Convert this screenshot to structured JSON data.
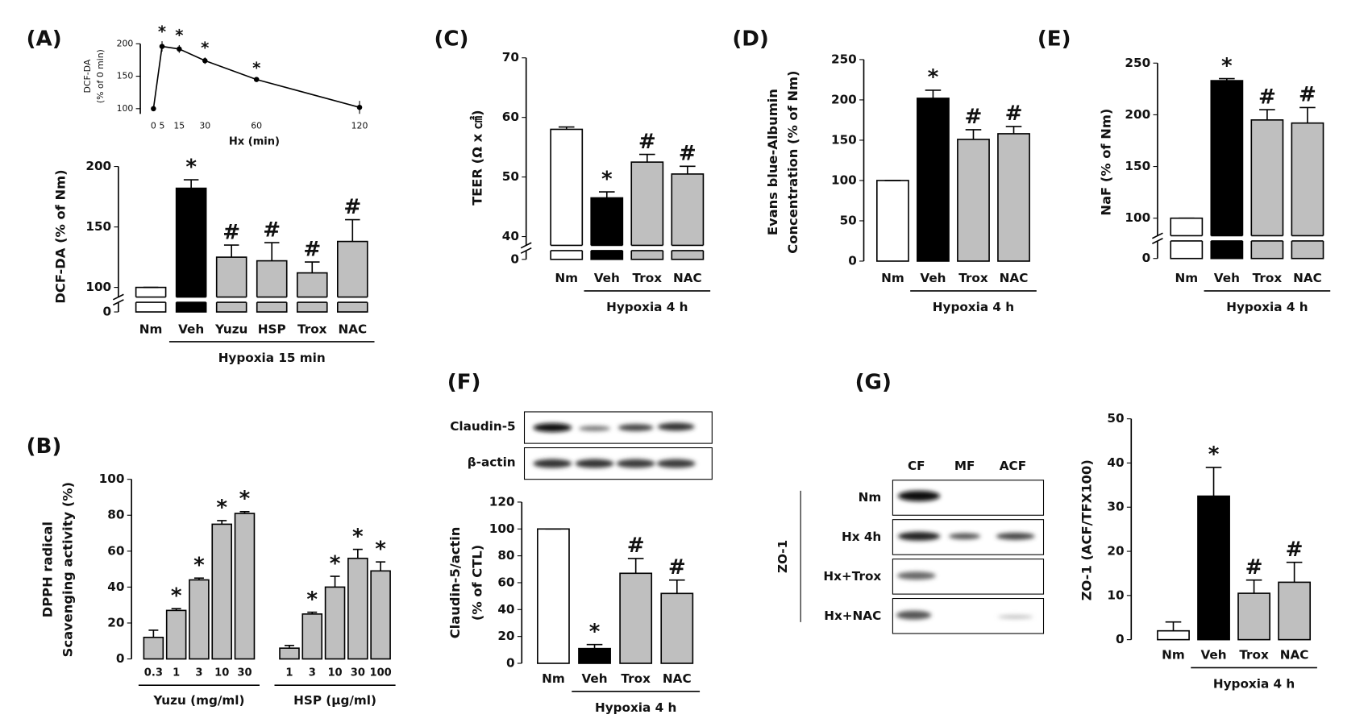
{
  "chart_data": [
    {
      "type": "line",
      "x": [
        0,
        5,
        15,
        30,
        60,
        120
      ],
      "values": [
        100,
        196,
        192,
        174,
        145,
        102
      ],
      "errors": [
        2,
        8,
        6,
        5,
        3,
        10
      ],
      "markers": [
        null,
        "*",
        "*",
        "*",
        "*",
        null
      ],
      "xticks": [
        0,
        5,
        15,
        30,
        60,
        120
      ],
      "xlim": [
        0,
        120
      ],
      "ylim": [
        100,
        200
      ],
      "yticks": [
        100,
        150,
        200
      ],
      "xlabel": "Hx (min)",
      "ylabel": [
        "DCF-DA",
        "(% of 0 min)"
      ],
      "color": "#000000"
    },
    {
      "type": "bar",
      "panel": "(A)",
      "categories": [
        "Nm",
        "Veh",
        "Yuzu",
        "HSP",
        "Trox",
        "NAC"
      ],
      "values": [
        100,
        182,
        125,
        122,
        112,
        138
      ],
      "errors": [
        0,
        7,
        10,
        15,
        9,
        18
      ],
      "colors": [
        "#ffffff",
        "#000000",
        "#bfbfbf",
        "#bfbfbf",
        "#bfbfbf",
        "#bfbfbf"
      ],
      "markers": [
        null,
        "*",
        "#",
        "#",
        "#",
        "#"
      ],
      "ylim": [
        100,
        200
      ],
      "yticks": [
        0,
        100,
        150,
        200
      ],
      "axis_break": true,
      "ylabel": [
        "DCF-DA (% of Nm)"
      ],
      "group_label": "Hypoxia 15 min"
    },
    {
      "type": "bar",
      "panel": "(B)",
      "groups": [
        {
          "name": "Yuzu (mg/ml)",
          "categories": [
            "0.3",
            "1",
            "3",
            "10",
            "30"
          ],
          "values": [
            12,
            27,
            44,
            75,
            81
          ],
          "errors": [
            4,
            1,
            1,
            2,
            1
          ],
          "markers": [
            null,
            "*",
            "*",
            "*",
            "*"
          ]
        },
        {
          "name": "HSP (μg/ml)",
          "categories": [
            "1",
            "3",
            "10",
            "30",
            "100"
          ],
          "values": [
            6,
            25,
            40,
            56,
            49
          ],
          "errors": [
            1.5,
            1,
            6,
            5,
            5
          ],
          "markers": [
            null,
            "*",
            "*",
            "*",
            "*"
          ]
        }
      ],
      "color": "#bfbfbf",
      "ylim": [
        0,
        100
      ],
      "yticks": [
        0,
        20,
        40,
        60,
        80,
        100
      ],
      "ylabel": [
        "DPPH radical",
        "Scavenging activity (%)"
      ]
    },
    {
      "type": "bar",
      "panel": "(C)",
      "categories": [
        "Nm",
        "Veh",
        "Trox",
        "NAC"
      ],
      "values": [
        58,
        46.5,
        52.5,
        50.5
      ],
      "errors": [
        0.4,
        1,
        1.3,
        1.3
      ],
      "colors": [
        "#ffffff",
        "#000000",
        "#bfbfbf",
        "#bfbfbf"
      ],
      "markers": [
        null,
        "*",
        "#",
        "#"
      ],
      "ylim": [
        40,
        70
      ],
      "yticks": [
        0,
        40,
        50,
        60,
        70
      ],
      "axis_break": true,
      "ylabel": [
        "TEER (Ω x ㎠)"
      ],
      "group_label": "Hypoxia 4 h"
    },
    {
      "type": "bar",
      "panel": "(D)",
      "categories": [
        "Nm",
        "Veh",
        "Trox",
        "NAC"
      ],
      "values": [
        100,
        202,
        151,
        158
      ],
      "errors": [
        0,
        10,
        12,
        9
      ],
      "colors": [
        "#ffffff",
        "#000000",
        "#bfbfbf",
        "#bfbfbf"
      ],
      "markers": [
        null,
        "*",
        "#",
        "#"
      ],
      "ylim": [
        0,
        250
      ],
      "yticks": [
        0,
        50,
        100,
        150,
        200,
        250
      ],
      "ylabel": [
        "Evans blue-Albumin",
        "Concentration (% of Nm)"
      ],
      "group_label": "Hypoxia 4 h"
    },
    {
      "type": "bar",
      "panel": "(E)",
      "categories": [
        "Nm",
        "Veh",
        "Trox",
        "NAC"
      ],
      "values": [
        100,
        233,
        195,
        192
      ],
      "errors": [
        0,
        2,
        10,
        15
      ],
      "colors": [
        "#ffffff",
        "#000000",
        "#bfbfbf",
        "#bfbfbf"
      ],
      "markers": [
        null,
        "*",
        "#",
        "#"
      ],
      "ylim": [
        100,
        250
      ],
      "yticks": [
        0,
        100,
        150,
        200,
        250
      ],
      "axis_break": true,
      "ylabel": [
        "NaF (% of Nm)"
      ],
      "group_label": "Hypoxia 4 h"
    },
    {
      "type": "bar",
      "panel": "(F)",
      "categories": [
        "Nm",
        "Veh",
        "Trox",
        "NAC"
      ],
      "values": [
        100,
        11,
        67,
        52
      ],
      "errors": [
        0,
        3,
        11,
        10
      ],
      "colors": [
        "#ffffff",
        "#000000",
        "#bfbfbf",
        "#bfbfbf"
      ],
      "markers": [
        null,
        "*",
        "#",
        "#"
      ],
      "ylim": [
        0,
        120
      ],
      "yticks": [
        0,
        20,
        40,
        60,
        80,
        100,
        120
      ],
      "ylabel": [
        "Claudin-5/actin",
        "(% of CTL)"
      ],
      "group_label": "Hypoxia 4 h"
    },
    {
      "type": "bar",
      "panel": "(G)",
      "categories": [
        "Nm",
        "Veh",
        "Trox",
        "NAC"
      ],
      "values": [
        2,
        32.5,
        10.5,
        13
      ],
      "errors": [
        2,
        6.5,
        3,
        4.5
      ],
      "colors": [
        "#ffffff",
        "#000000",
        "#bfbfbf",
        "#bfbfbf"
      ],
      "markers": [
        null,
        "*",
        "#",
        "#"
      ],
      "ylim": [
        0,
        50
      ],
      "yticks": [
        0,
        10,
        20,
        30,
        40,
        50
      ],
      "ylabel": [
        "ZO-1 (ACF/TFX100)"
      ],
      "group_label": "Hypoxia 4 h"
    }
  ],
  "blot_f": {
    "rows": [
      "Claudin-5",
      "β-actin"
    ]
  },
  "blot_g": {
    "protein": "ZO-1",
    "columns": [
      "CF",
      "MF",
      "ACF"
    ],
    "rows": [
      "Nm",
      "Hx 4h",
      "Hx+Trox",
      "Hx+NAC"
    ]
  }
}
